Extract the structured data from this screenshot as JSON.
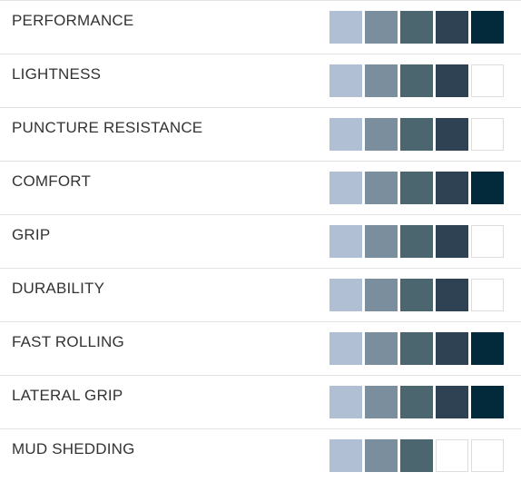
{
  "ratings": {
    "max": 5,
    "colors": [
      "#b0bfd3",
      "#7a8e9e",
      "#4c6670",
      "#2e4253",
      "#022a3a"
    ],
    "empty_color": "#ffffff",
    "rows": [
      {
        "label": "PERFORMANCE",
        "value": 5
      },
      {
        "label": "LIGHTNESS",
        "value": 4
      },
      {
        "label": "PUNCTURE RESISTANCE",
        "value": 4
      },
      {
        "label": "COMFORT",
        "value": 5
      },
      {
        "label": "GRIP",
        "value": 4
      },
      {
        "label": "DURABILITY",
        "value": 4
      },
      {
        "label": "FAST ROLLING",
        "value": 5
      },
      {
        "label": "LATERAL GRIP",
        "value": 5
      },
      {
        "label": "MUD SHEDDING",
        "value": 3
      }
    ]
  }
}
